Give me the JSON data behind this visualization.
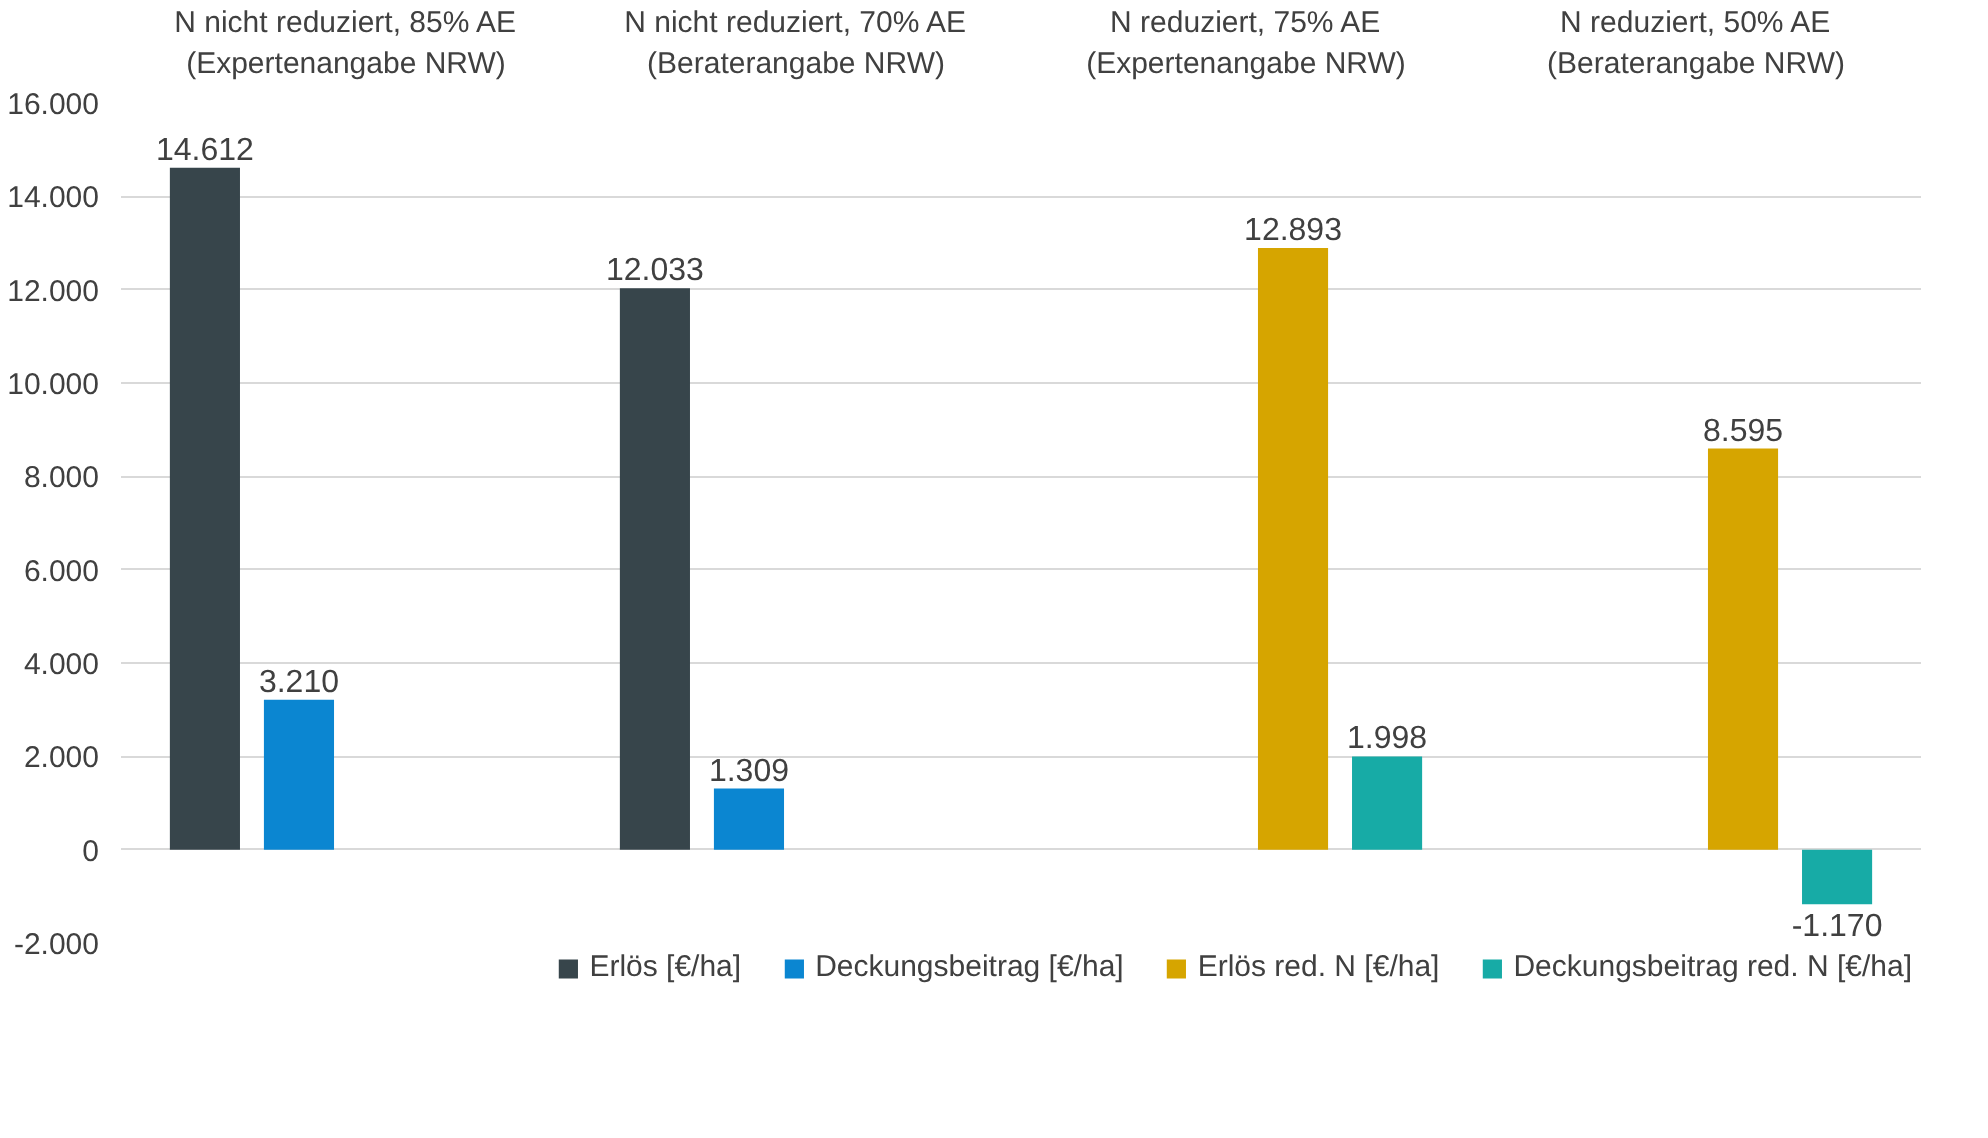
{
  "chart_data": {
    "type": "bar",
    "categories": [
      "N nicht reduziert, 85% AE\n(Expertenangabe NRW)",
      "N nicht reduziert, 70% AE\n(Beraterangabe NRW)",
      "N reduziert, 75% AE\n(Expertenangabe NRW)",
      "N reduziert, 50% AE\n(Beraterangabe NRW)"
    ],
    "series": [
      {
        "name": "Erlös [€/ha]",
        "color": "#37454b",
        "values": [
          14612,
          12033,
          null,
          null
        ],
        "value_labels": [
          "14.612",
          "12.033",
          null,
          null
        ]
      },
      {
        "name": "Deckungsbeitrag [€/ha]",
        "color": "#0b86d1",
        "values": [
          3210,
          1309,
          null,
          null
        ],
        "value_labels": [
          "3.210",
          "1.309",
          null,
          null
        ]
      },
      {
        "name": "Erlös red. N [€/ha]",
        "color": "#d6a500",
        "values": [
          null,
          null,
          12893,
          8595
        ],
        "value_labels": [
          null,
          null,
          "12.893",
          "8.595"
        ]
      },
      {
        "name": "Deckungsbeitrag red. N [€/ha]",
        "color": "#17aba6",
        "values": [
          null,
          null,
          1998,
          -1170
        ],
        "value_labels": [
          null,
          null,
          "1.998",
          "-1.170"
        ]
      }
    ],
    "ylim": [
      -2000,
      16000
    ],
    "yticks": [
      {
        "value": -2000,
        "label": "-2.000"
      },
      {
        "value": 0,
        "label": "0"
      },
      {
        "value": 2000,
        "label": "2.000"
      },
      {
        "value": 4000,
        "label": "4.000"
      },
      {
        "value": 6000,
        "label": "6.000"
      },
      {
        "value": 8000,
        "label": "8.000"
      },
      {
        "value": 10000,
        "label": "10.000"
      },
      {
        "value": 12000,
        "label": "12.000"
      },
      {
        "value": 14000,
        "label": "14.000"
      },
      {
        "value": 16000,
        "label": "16.000"
      }
    ],
    "grid": "y",
    "legend": "bottom"
  }
}
